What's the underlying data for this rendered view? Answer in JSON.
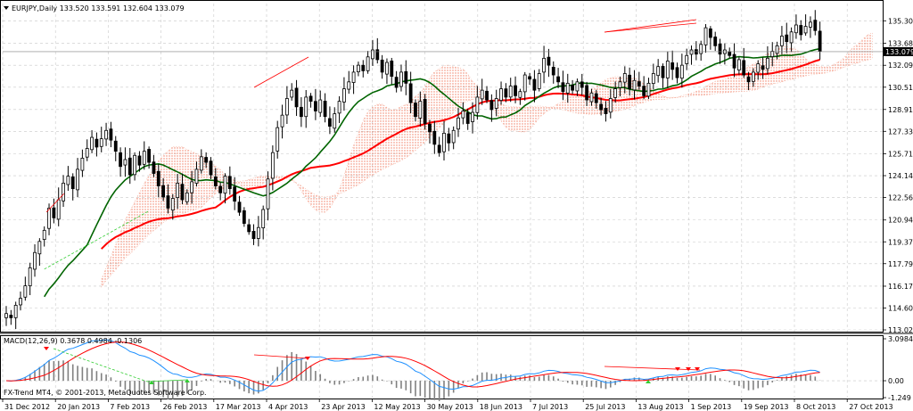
{
  "chart_data": {
    "type": "candlestick",
    "header": {
      "symbol_info": "EURJPY,Daily  133.520 133.591 132.604 133.079",
      "copyright": "FX-Trend MT4, © 2001-2013, MetaQuotes Software Corp."
    },
    "price_axis": {
      "ylim": [
        113.025,
        135.9
      ],
      "ticks": [
        "135.300",
        "133.680",
        "132.095",
        "130.515",
        "128.910",
        "127.335",
        "125.715",
        "124.140",
        "122.565",
        "120.945",
        "119.370",
        "117.795",
        "116.175",
        "114.600",
        "113.025"
      ],
      "current_price": "133.079"
    },
    "time_axis": {
      "ticks": [
        "31 Dec 2012",
        "20 Jan 2013",
        "7 Feb 2013",
        "26 Feb 2013",
        "17 Mar 2013",
        "4 Apr 2013",
        "23 Apr 2013",
        "12 May 2013",
        "30 May 2013",
        "18 Jun 2013",
        "7 Jul 2013",
        "25 Jul 2013",
        "13 Aug 2013",
        "1 Sep 2013",
        "19 Sep 2013",
        "8 Oct 2013",
        "27 Oct 2013"
      ]
    },
    "price_series_closes": [
      114.2,
      113.9,
      114.8,
      115.3,
      116.2,
      117.5,
      118.6,
      119.4,
      120.2,
      121.8,
      121.1,
      122.4,
      123.6,
      124.1,
      123.2,
      124.6,
      125.4,
      126.1,
      126.9,
      126.2,
      126.8,
      127.4,
      126.7,
      125.9,
      124.8,
      125.3,
      124.2,
      125.6,
      124.9,
      125.9,
      125.1,
      124.3,
      123.4,
      122.6,
      121.8,
      122.5,
      123.6,
      122.4,
      122.9,
      123.7,
      124.6,
      125.5,
      125.1,
      124.2,
      123.4,
      122.9,
      124.1,
      123.2,
      122.3,
      121.5,
      120.7,
      120.1,
      119.6,
      120.4,
      121.7,
      123.9,
      125.8,
      127.6,
      128.5,
      129.7,
      130.3,
      129.1,
      128.4,
      129.8,
      129.5,
      128.8,
      129.6,
      128.4,
      127.7,
      128.6,
      129.5,
      130.4,
      130.9,
      131.6,
      132.1,
      131.7,
      132.7,
      133.2,
      132.5,
      131.6,
      132.3,
      131.3,
      130.5,
      131.6,
      130.8,
      129.4,
      128.4,
      129.5,
      127.9,
      127.3,
      126.4,
      125.8,
      127.2,
      126.5,
      127.4,
      128.3,
      128.8,
      127.9,
      128.7,
      129.8,
      130.3,
      129.6,
      128.9,
      129.7,
      130.4,
      129.8,
      130.6,
      129.9,
      130.2,
      131.4,
      131.1,
      130.3,
      131.5,
      132.6,
      132.1,
      131.4,
      130.9,
      130.2,
      130.8,
      130.3,
      130.9,
      130.5,
      129.6,
      130.1,
      129.4,
      128.9,
      128.6,
      129.7,
      130.4,
      130.9,
      131.5,
      130.4,
      131.0,
      130.6,
      129.9,
      130.8,
      131.5,
      132.0,
      131.2,
      132.4,
      131.8,
      131.2,
      132.1,
      132.8,
      133.2,
      132.9,
      133.6,
      134.8,
      134.1,
      133.5,
      132.9,
      133.2,
      132.8,
      131.9,
      132.5,
      131.4,
      130.9,
      131.6,
      132.2,
      131.8,
      132.6,
      133.1,
      133.5,
      134.2,
      133.8,
      134.5,
      135.0,
      134.3,
      134.9,
      135.2,
      134.6,
      133.1
    ],
    "overlays": [
      {
        "name": "moving-average-slow",
        "color": "#ff0000",
        "style": "solid thick"
      },
      {
        "name": "moving-average-fast",
        "color": "#006400",
        "style": "solid thick"
      },
      {
        "name": "ichimoku-cloud-bearish",
        "color": "#ff9a7a",
        "style": "dotted fill"
      },
      {
        "name": "ichimoku-cloud-bullish",
        "color": "#d9a6f0",
        "style": "dotted fill"
      }
    ],
    "macd_panel": {
      "title": "MACD(12,26,9) 0.3678 0.4984 -0.1306",
      "ylim": [
        -1.249,
        3.0984
      ],
      "ticks": [
        "3.0984",
        "0.00",
        "-1.249"
      ],
      "colors": {
        "macd": "#1e90ff",
        "signal": "#ff0000",
        "histogram": "#808080"
      }
    },
    "colors": {
      "background": "#ffffff",
      "grid": "#c8c8c8",
      "candle": "#000000",
      "trendline": "#ff0000",
      "divergence_bull": "#32cd32",
      "divergence_bear": "#ff0000",
      "current_price_box": "#000000"
    },
    "grid": true
  }
}
